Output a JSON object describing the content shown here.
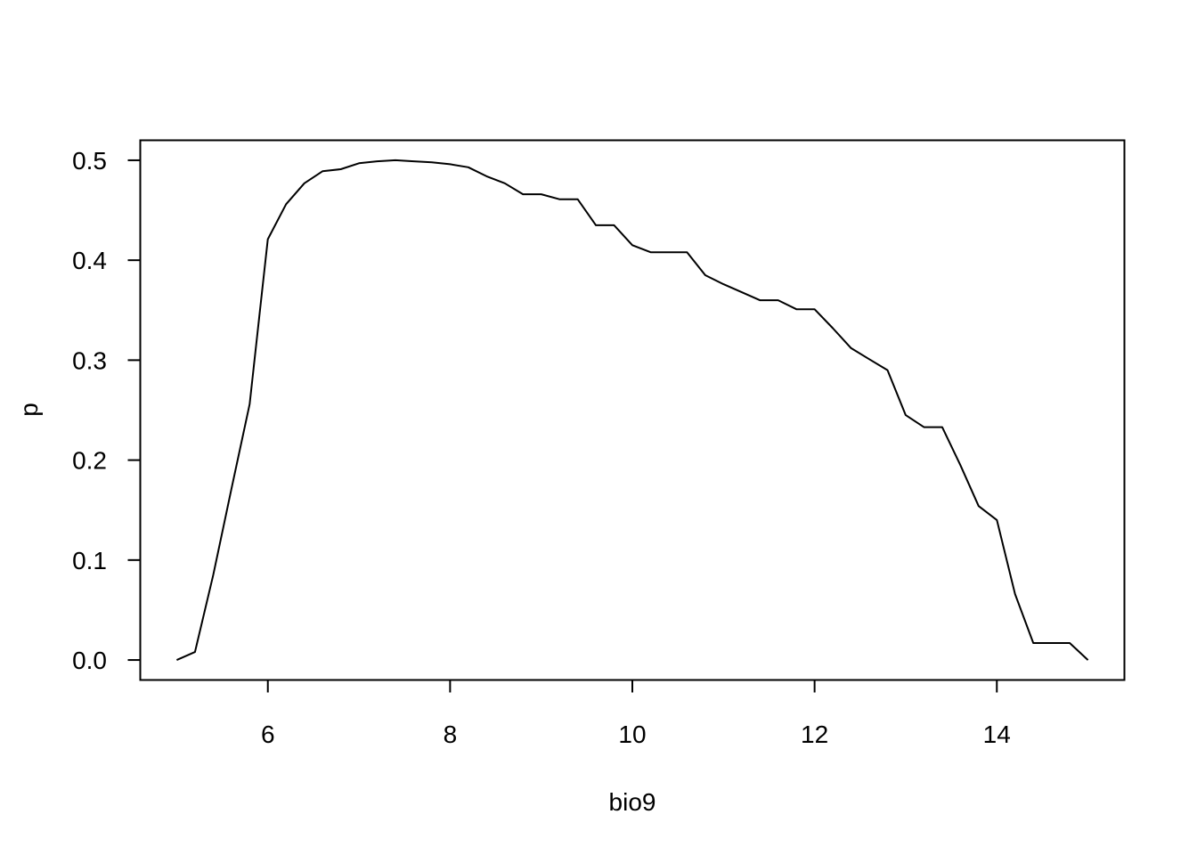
{
  "chart_data": {
    "type": "line",
    "title": "",
    "xlabel": "bio9",
    "ylabel": "p",
    "xlim": [
      4.6,
      15.4
    ],
    "ylim": [
      -0.02,
      0.52
    ],
    "x_ticks": [
      6,
      8,
      10,
      12,
      14
    ],
    "x_tick_labels": [
      "6",
      "8",
      "10",
      "12",
      "14"
    ],
    "y_ticks": [
      0.0,
      0.1,
      0.2,
      0.3,
      0.4,
      0.5
    ],
    "y_tick_labels": [
      "0.0",
      "0.1",
      "0.2",
      "0.3",
      "0.4",
      "0.5"
    ],
    "grid": false,
    "legend": "none",
    "line_color": "#000000",
    "series": [
      {
        "x": [
          5.0,
          5.2,
          5.4,
          5.6,
          5.8,
          6.0,
          6.2,
          6.4,
          6.6,
          6.8,
          7.0,
          7.2,
          7.4,
          7.6,
          7.8,
          8.0,
          8.2,
          8.4,
          8.6,
          8.8,
          9.0,
          9.2,
          9.4,
          9.6,
          9.8,
          10.0,
          10.2,
          10.4,
          10.6,
          10.8,
          11.0,
          11.2,
          11.4,
          11.6,
          11.8,
          12.0,
          12.2,
          12.4,
          12.6,
          12.8,
          13.0,
          13.2,
          13.4,
          13.6,
          13.8,
          14.0,
          14.2,
          14.4,
          14.6,
          14.8,
          15.0
        ],
        "values": [
          0.0,
          0.008,
          0.085,
          0.171,
          0.256,
          0.421,
          0.456,
          0.477,
          0.489,
          0.491,
          0.497,
          0.499,
          0.5,
          0.499,
          0.498,
          0.496,
          0.493,
          0.484,
          0.477,
          0.466,
          0.466,
          0.461,
          0.461,
          0.435,
          0.435,
          0.415,
          0.408,
          0.408,
          0.408,
          0.385,
          0.376,
          0.368,
          0.36,
          0.36,
          0.351,
          0.351,
          0.332,
          0.312,
          0.301,
          0.29,
          0.245,
          0.233,
          0.233,
          0.195,
          0.154,
          0.14,
          0.066,
          0.017,
          0.017,
          0.017,
          0.0
        ]
      }
    ]
  }
}
